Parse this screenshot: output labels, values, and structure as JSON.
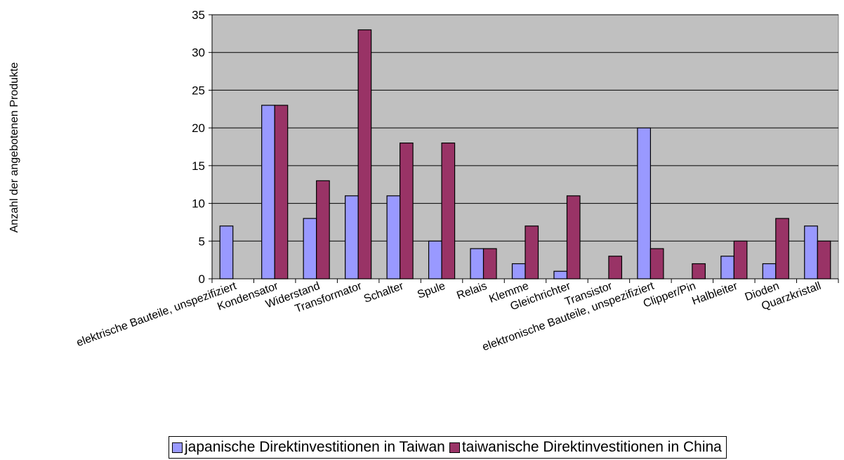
{
  "chart_data": {
    "type": "bar",
    "ylabel": "Anzahl der angebotenen Produkte",
    "xlabel": "",
    "ylim": [
      0,
      35
    ],
    "yticks": [
      0,
      5,
      10,
      15,
      20,
      25,
      30,
      35
    ],
    "grid": "horizontal",
    "legend_position": "bottom",
    "categories": [
      "elektrische Bauteile, unspezifiziert",
      "Kondensator",
      "Widerstand",
      "Transformator",
      "Schalter",
      "Spule",
      "Relais",
      "Klemme",
      "Gleichrichter",
      "Transistor",
      "elektronische Bauteile, unspezifiziert",
      "Clipper/Pin",
      "Halbleiter",
      "Dioden",
      "Quarzkristall"
    ],
    "series": [
      {
        "name": "japanische Direktinvestitionen in Taiwan",
        "color": "#9999FF",
        "values": [
          7,
          23,
          8,
          11,
          11,
          5,
          4,
          2,
          1,
          0,
          20,
          0,
          3,
          2,
          7
        ]
      },
      {
        "name": "taiwanische Direktinvestitionen in China",
        "color": "#993366",
        "values": [
          0,
          23,
          13,
          33,
          18,
          18,
          4,
          7,
          11,
          3,
          4,
          2,
          5,
          8,
          5
        ]
      }
    ],
    "plot_background": "#C0C0C0"
  }
}
